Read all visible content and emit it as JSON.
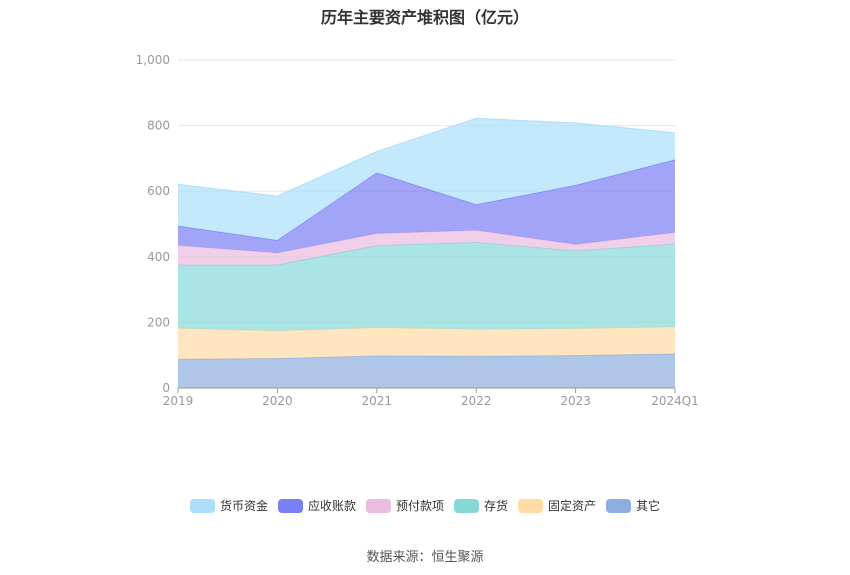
{
  "chart_data": {
    "type": "area",
    "stacked": true,
    "title": "历年主要资产堆积图（亿元）",
    "categories": [
      "2019",
      "2020",
      "2021",
      "2022",
      "2023",
      "2024Q1"
    ],
    "ylim": [
      0,
      1000
    ],
    "yticks": [
      0,
      200,
      400,
      600,
      800,
      1000
    ],
    "ytick_labels": [
      "0",
      "200",
      "400",
      "600",
      "800",
      "1,000"
    ],
    "grid": true,
    "legend_position": "bottom",
    "series": [
      {
        "name": "其它",
        "color": "#8eaede",
        "values": [
          88,
          90,
          98,
          97,
          99,
          104
        ]
      },
      {
        "name": "固定资产",
        "color": "#ffdca6",
        "values": [
          94,
          84,
          86,
          82,
          82,
          82
        ]
      },
      {
        "name": "存货",
        "color": "#86d8d8",
        "values": [
          193,
          201,
          250,
          265,
          237,
          253
        ]
      },
      {
        "name": "预付款项",
        "color": "#eabcde",
        "values": [
          60,
          37,
          37,
          37,
          20,
          35
        ]
      },
      {
        "name": "应收账款",
        "color": "#7b7ff4",
        "values": [
          59,
          38,
          185,
          78,
          180,
          222
        ]
      },
      {
        "name": "货币资金",
        "color": "#abdffc",
        "values": [
          127,
          135,
          65,
          263,
          190,
          82
        ]
      }
    ]
  },
  "legend_order": [
    "货币资金",
    "应收账款",
    "预付款项",
    "存货",
    "固定资产",
    "其它"
  ],
  "source_text": "数据来源：恒生聚源"
}
